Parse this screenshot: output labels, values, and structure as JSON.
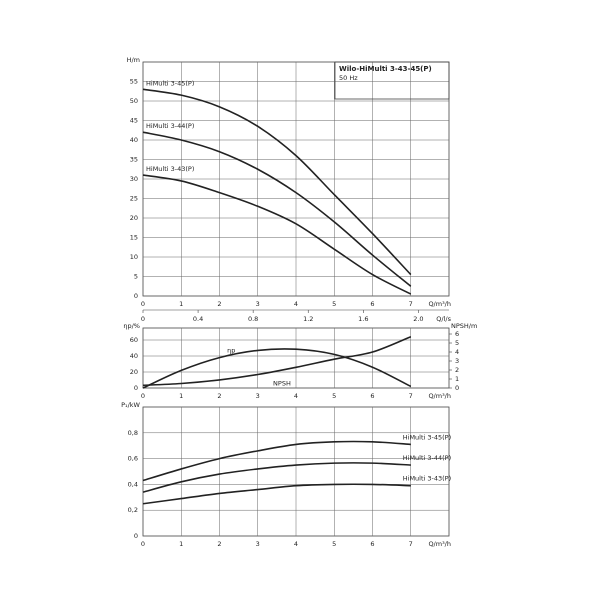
{
  "chart_data": [
    {
      "type": "line",
      "title": "Wilo-HiMulti 3-43-45(P)",
      "subtitle": "50 Hz",
      "ylabel": "H/m",
      "xlabel": "Q/m³/h",
      "x2label": "Q/l/s",
      "x": [
        0,
        1,
        2,
        3,
        4,
        5,
        6,
        7
      ],
      "xlim": [
        0,
        8
      ],
      "xticks": [
        0,
        1,
        2,
        3,
        4,
        5,
        6,
        7
      ],
      "x2lim": [
        0,
        2.2222
      ],
      "x2ticks": [
        0,
        0.4,
        0.8,
        1.2,
        1.6,
        {
          "value": 2,
          "label": "2.0"
        }
      ],
      "ylim": [
        0,
        60
      ],
      "yticks": [
        0,
        5,
        10,
        15,
        20,
        25,
        30,
        35,
        40,
        45,
        50,
        55
      ],
      "grid": true,
      "series": [
        {
          "name": "HiMulti 3-45(P)",
          "color": "#222",
          "values": [
            53,
            51.5,
            48.5,
            43.5,
            36,
            26,
            16,
            5.5
          ]
        },
        {
          "name": "HiMulti 3-44(P)",
          "color": "#222",
          "values": [
            42,
            40,
            37,
            32.5,
            26.5,
            19,
            10.5,
            2.5
          ]
        },
        {
          "name": "HiMulti 3-43(P)",
          "color": "#222",
          "values": [
            31,
            29.5,
            26.5,
            23,
            18.5,
            12,
            5.5,
            0.5
          ]
        }
      ]
    },
    {
      "type": "line",
      "ylabel": "ηp/%",
      "y2label": "NPSH/m",
      "xlabel": "Q/m³/h",
      "x": [
        0,
        1,
        2,
        3,
        4,
        5,
        6,
        7
      ],
      "xlim": [
        0,
        8
      ],
      "xticks": [
        0,
        1,
        2,
        3,
        4,
        5,
        6,
        7
      ],
      "ylim": [
        0,
        75
      ],
      "yticks": [
        0,
        20,
        40,
        60
      ],
      "y2lim": [
        0,
        6.667
      ],
      "y2ticks": [
        0,
        1,
        2,
        3,
        4,
        5,
        6
      ],
      "grid": true,
      "series": [
        {
          "name": "ηp",
          "color": "#222",
          "values": [
            0,
            22,
            38,
            47,
            48.5,
            42,
            26,
            2
          ]
        },
        {
          "name": "NPSH",
          "color": "#222",
          "axis": "y2",
          "values": [
            0.3,
            0.5,
            0.9,
            1.5,
            2.3,
            3.2,
            4,
            5.7
          ]
        }
      ]
    },
    {
      "type": "line",
      "ylabel": "P₁/kW",
      "xlabel": "Q/m³/h",
      "x": [
        0,
        1,
        2,
        3,
        4,
        5,
        6,
        7
      ],
      "xlim": [
        0,
        8
      ],
      "xticks": [
        0,
        1,
        2,
        3,
        4,
        5,
        6,
        7
      ],
      "ylim": [
        0,
        1
      ],
      "yticks": [
        0,
        {
          "value": 0.2,
          "label": "0,2"
        },
        {
          "value": 0.4,
          "label": "0,4"
        },
        {
          "value": 0.6,
          "label": "0,6"
        },
        {
          "value": 0.8,
          "label": "0,8"
        }
      ],
      "grid": true,
      "series": [
        {
          "name": "HiMulti 3-45(P)",
          "color": "#222",
          "values": [
            0.43,
            0.52,
            0.6,
            0.66,
            0.71,
            0.73,
            0.73,
            0.71
          ]
        },
        {
          "name": "HiMulti 3-44(P)",
          "color": "#222",
          "values": [
            0.34,
            0.42,
            0.48,
            0.52,
            0.55,
            0.565,
            0.565,
            0.55
          ]
        },
        {
          "name": "HiMulti 3-43(P)",
          "color": "#222",
          "values": [
            0.25,
            0.29,
            0.33,
            0.36,
            0.39,
            0.4,
            0.4,
            0.39
          ]
        }
      ]
    }
  ]
}
